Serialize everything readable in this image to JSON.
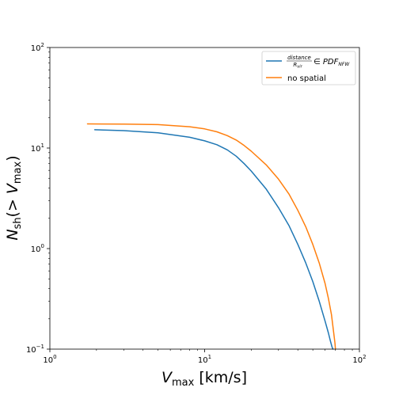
{
  "chart_data": {
    "type": "line",
    "title": "",
    "xscale": "log",
    "yscale": "log",
    "xlim": [
      1,
      100
    ],
    "ylim": [
      0.1,
      100
    ],
    "grid": false,
    "legend_position": "top-right",
    "xlabel": {
      "main": "V",
      "sub": "max",
      "unit": " [km/s]"
    },
    "ylabel": {
      "main": "N",
      "sub": "sh",
      "paren_open": "(> ",
      "paren_var": "V",
      "paren_sub": "max",
      "paren_close": ")"
    },
    "x_ticks": [
      {
        "value": 1,
        "base": "10",
        "exp": "0"
      },
      {
        "value": 10,
        "base": "10",
        "exp": "1"
      },
      {
        "value": 100,
        "base": "10",
        "exp": "2"
      }
    ],
    "y_ticks": [
      {
        "value": 0.1,
        "base": "10",
        "exp": "−1"
      },
      {
        "value": 1,
        "base": "10",
        "exp": "0"
      },
      {
        "value": 10,
        "base": "10",
        "exp": "1"
      },
      {
        "value": 100,
        "base": "10",
        "exp": "2"
      }
    ],
    "series": [
      {
        "name": "distance/R_vir ∈ PDF_NFW",
        "legend": {
          "numerator": "distance",
          "denominator": "R",
          "denominator_sub": "vir",
          "relation": "∈ ",
          "pdf": "PDF",
          "pdf_sub": "NFW"
        },
        "color": "#1f77b4",
        "x": [
          1.95,
          3,
          5,
          8,
          10,
          12,
          14,
          16,
          18,
          20,
          25,
          30,
          35,
          40,
          45,
          50,
          55,
          60,
          63,
          65,
          66.5,
          67.5
        ],
        "y": [
          15.2,
          14.9,
          14.2,
          12.8,
          11.8,
          10.8,
          9.6,
          8.3,
          7.0,
          5.9,
          3.9,
          2.55,
          1.7,
          1.1,
          0.72,
          0.47,
          0.3,
          0.19,
          0.145,
          0.12,
          0.105,
          0.1
        ]
      },
      {
        "name": "no spatial",
        "color": "#ff7f0e",
        "x": [
          1.75,
          3,
          5,
          8,
          10,
          12,
          14,
          16,
          18,
          20,
          25,
          30,
          35,
          40,
          45,
          50,
          55,
          60,
          63,
          66,
          68,
          69.5,
          70
        ],
        "y": [
          17.4,
          17.3,
          17.1,
          16.3,
          15.5,
          14.5,
          13.3,
          12.0,
          10.6,
          9.3,
          6.8,
          4.9,
          3.5,
          2.4,
          1.65,
          1.1,
          0.72,
          0.45,
          0.32,
          0.22,
          0.15,
          0.115,
          0.1
        ]
      }
    ]
  }
}
